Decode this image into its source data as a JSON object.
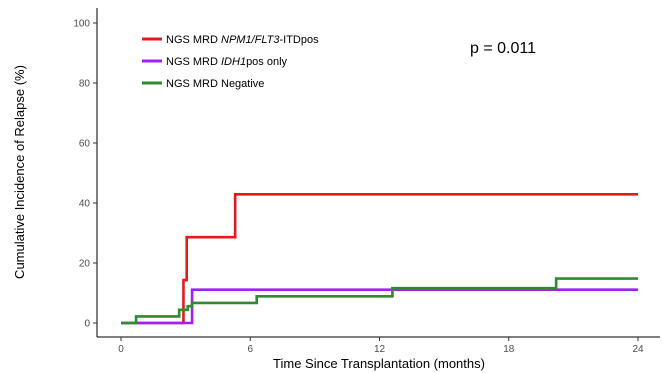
{
  "chart_data": {
    "type": "line",
    "step": true,
    "xlabel": "Time Since Transplantation (months)",
    "ylabel": "Cumulative Incidence of Relapse (%)",
    "xlim": [
      0,
      24
    ],
    "ylim": [
      0,
      100
    ],
    "x_ticks": [
      0,
      6,
      12,
      18,
      24
    ],
    "y_ticks": [
      0,
      20,
      40,
      60,
      80,
      100
    ],
    "grid": false,
    "legend_position": "top-left",
    "annotation": "p = 0.011",
    "series": [
      {
        "name": "NGS MRD NPM1/FLT3-ITDpos",
        "legend_parts": [
          {
            "text": "NGS MRD ",
            "italic": false
          },
          {
            "text": "NPM1/FLT3",
            "italic": true
          },
          {
            "text": "-ITDpos",
            "italic": false
          }
        ],
        "color": "#e41a1c",
        "x": [
          0,
          2.8,
          2.9,
          3.05,
          5.3,
          24
        ],
        "y": [
          0,
          0,
          14.3,
          28.6,
          42.9,
          42.9
        ]
      },
      {
        "name": "NGS MRD IDH1pos only",
        "legend_parts": [
          {
            "text": "NGS MRD ",
            "italic": false
          },
          {
            "text": "IDH1",
            "italic": true
          },
          {
            "text": "pos only",
            "italic": false
          }
        ],
        "color": "#a020f0",
        "x": [
          0,
          3.0,
          3.3,
          24
        ],
        "y": [
          0,
          0,
          11.1,
          11.1
        ]
      },
      {
        "name": "NGS MRD Negative",
        "legend_parts": [
          {
            "text": "NGS MRD Negative",
            "italic": false
          }
        ],
        "color": "#2e8b2e",
        "x": [
          0,
          0.7,
          2.7,
          3.1,
          3.3,
          6.3,
          12.6,
          20.2,
          24
        ],
        "y": [
          0,
          2.2,
          4.4,
          5.6,
          6.7,
          8.9,
          11.6,
          14.8,
          14.8
        ]
      }
    ]
  }
}
